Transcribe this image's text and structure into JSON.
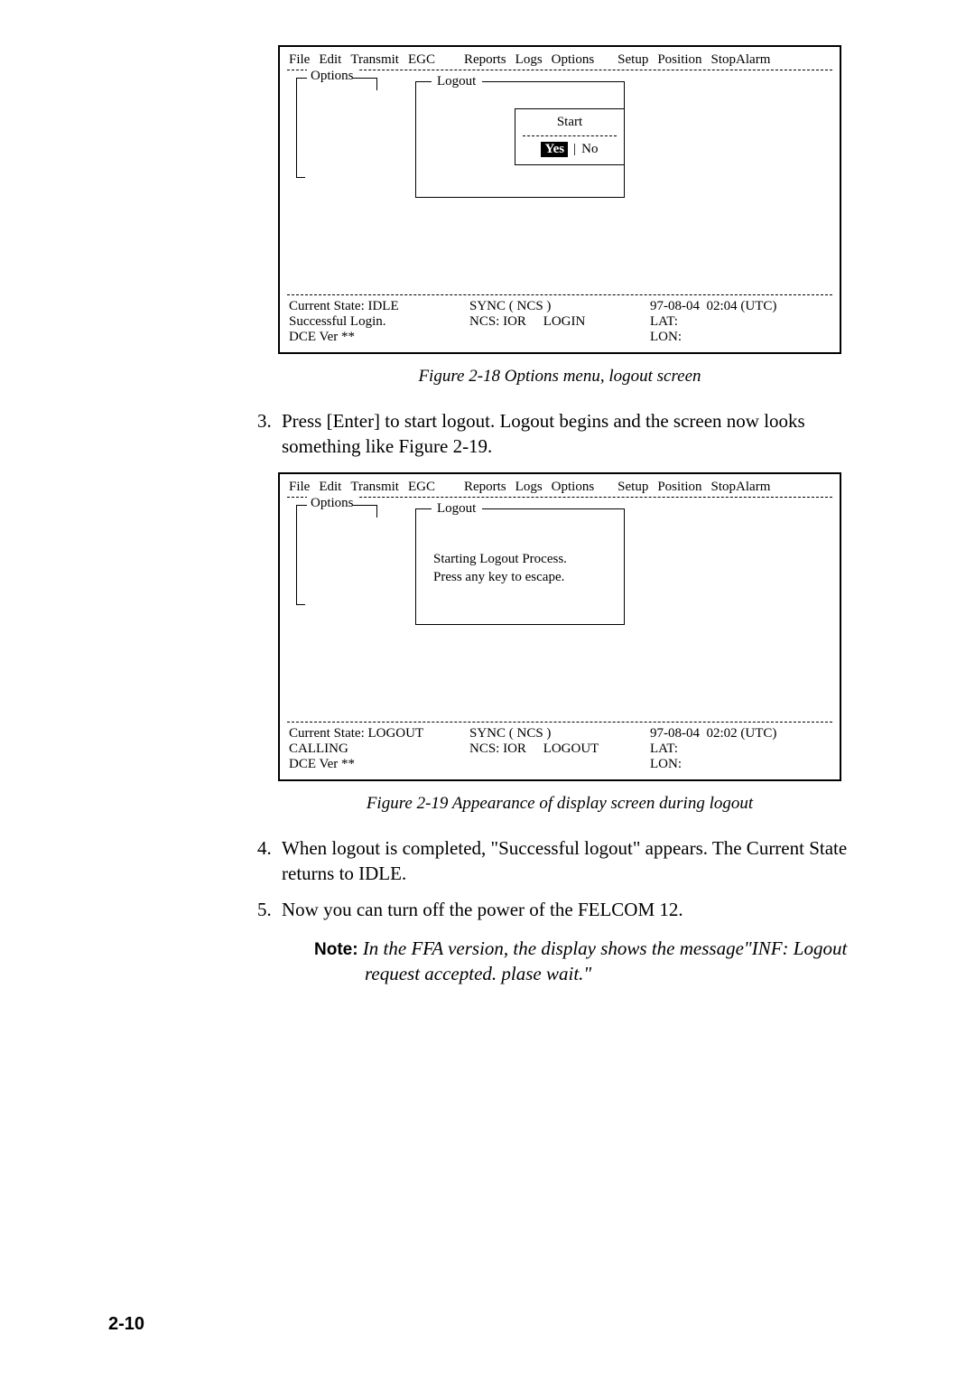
{
  "menu": {
    "items": [
      "File",
      "Edit",
      "Transmit",
      "EGC",
      "Reports",
      "Logs",
      "Options",
      "Setup",
      "Position",
      "StopAlarm"
    ]
  },
  "screen1": {
    "options_label": "Options",
    "logout_label": "Logout",
    "start_label": "Start",
    "yes": "Yes",
    "no": "No",
    "status": {
      "state_label": "Current State: IDLE",
      "line2": "Successful Login.",
      "line3": "DCE Ver **",
      "sync": "SYNC ( NCS )",
      "ncs": "NCS: IOR",
      "auth": "LOGIN",
      "date": "97-08-04",
      "time": "02:04 (UTC)",
      "lat": "LAT:",
      "lon": "LON:"
    }
  },
  "caption1": "Figure 2-18 Options menu, logout screen",
  "step3": "Press [Enter] to start logout. Logout begins and the screen now looks something like Figure 2-19.",
  "screen2": {
    "options_label": "Options",
    "logout_label": "Logout",
    "msg1": "Starting Logout Process.",
    "msg2": "Press any key to escape.",
    "status": {
      "state_label": "Current State: LOGOUT",
      "line2": "CALLING",
      "line3": "DCE Ver **",
      "sync": "SYNC ( NCS )",
      "ncs": "NCS: IOR",
      "auth": "LOGOUT",
      "date": "97-08-04",
      "time": "02:02 (UTC)",
      "lat": "LAT:",
      "lon": "LON:"
    }
  },
  "caption2": "Figure 2-19 Appearance of display screen during logout",
  "step4": "When logout is completed, \"Successful logout\" appears. The Current State returns to IDLE.",
  "step5": "Now you can turn off the power of the FELCOM 12.",
  "note_label": "Note:",
  "note_body": "In the FFA version, the display shows the message\"INF: Logout  request accepted. plase wait.\"",
  "page_number": "2-10",
  "colors": {
    "text": "#000000",
    "background": "#ffffff",
    "highlight_bg": "#000000",
    "highlight_fg": "#ffffff"
  },
  "fonts": {
    "body_family": "Times New Roman",
    "body_size_pt": 16,
    "caption_size_pt": 14,
    "screen_size_pt": 11,
    "note_label_family": "Helvetica"
  }
}
